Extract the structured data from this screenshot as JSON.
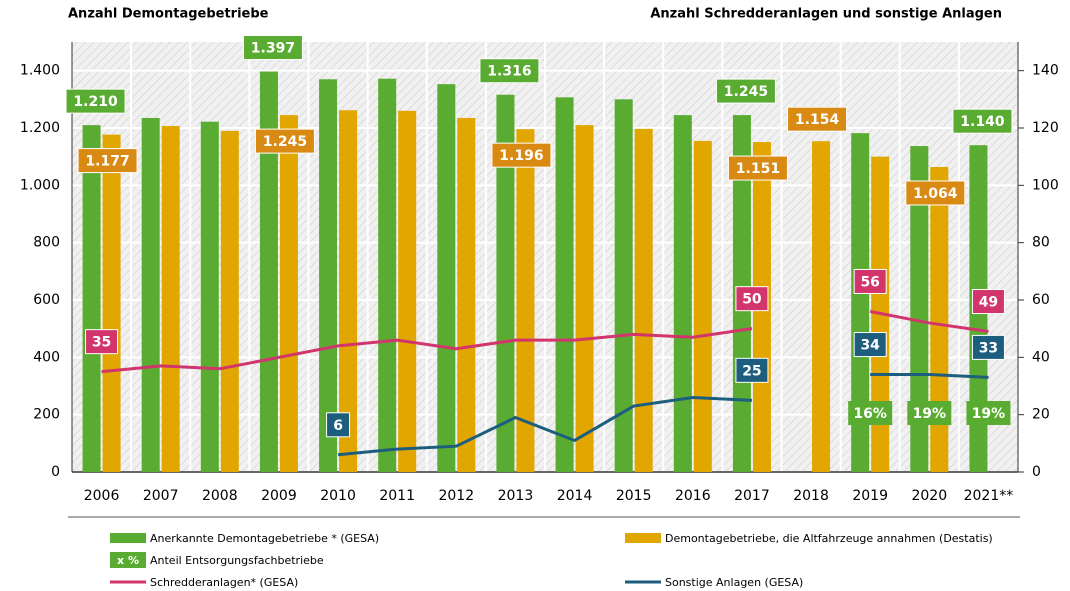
{
  "chart_data": {
    "type": "bar",
    "y_title": "Anzahl Demontagebetriebe",
    "y2_title": "Anzahl Schredderanlagen und sonstige Anlagen",
    "categories": [
      "2006",
      "2007",
      "2008",
      "2009",
      "2010",
      "2011",
      "2012",
      "2013",
      "2014",
      "2015",
      "2016",
      "2017",
      "2018",
      "2019",
      "2020",
      "2021**"
    ],
    "ylim": [
      0,
      1500
    ],
    "yticks": [
      0,
      200,
      400,
      600,
      800,
      {
        "value": 1000,
        "label": "1.000"
      },
      {
        "value": 1200,
        "label": "1.200"
      },
      {
        "value": 1400,
        "label": "1.400"
      }
    ],
    "y2lim": [
      0,
      150
    ],
    "y2ticks": [
      0,
      20,
      40,
      60,
      80,
      100,
      120,
      140
    ],
    "grid": true,
    "series": [
      {
        "name": "Anerkannte Demontagebetriebe * (GESA)",
        "type": "bar",
        "color": "#5aab31",
        "values": [
          1210,
          1235,
          1222,
          1397,
          1370,
          1372,
          1353,
          1316,
          1307,
          1300,
          1245,
          1245,
          null,
          1182,
          1137,
          1140
        ],
        "value_labels": [
          "1.210",
          null,
          null,
          "1.397",
          null,
          null,
          null,
          "1.316",
          null,
          null,
          null,
          "1.245",
          null,
          null,
          null,
          "1.140"
        ]
      },
      {
        "name": "Demontagebetriebe, die Altfahrzeuge annahmen (Destatis)",
        "type": "bar",
        "color": "#e2a600",
        "label_color": "#d98a12",
        "values": [
          1177,
          1207,
          1190,
          1245,
          1262,
          1260,
          1235,
          1196,
          1210,
          1197,
          1155,
          1151,
          1154,
          1100,
          1064,
          null
        ],
        "value_labels": [
          "1.177",
          null,
          null,
          "1.245",
          null,
          null,
          null,
          "1.196",
          null,
          null,
          null,
          "1.151",
          "1.154",
          null,
          "1.064",
          null
        ]
      },
      {
        "name": "Anteil Entsorgungsfachbetriebe",
        "type": "share",
        "color": "#5aab31",
        "legend_symbol": "x %",
        "values": [
          null,
          null,
          null,
          null,
          null,
          null,
          null,
          null,
          null,
          null,
          null,
          null,
          null,
          16,
          19,
          19
        ],
        "value_labels": [
          null,
          null,
          null,
          null,
          null,
          null,
          null,
          null,
          null,
          null,
          null,
          null,
          null,
          "16%",
          "19%",
          "19%"
        ]
      },
      {
        "name": "Schredderanlagen* (GESA)",
        "type": "line",
        "axis": "y2",
        "color": "#d2346c",
        "values": [
          35,
          37,
          36,
          40,
          44,
          46,
          43,
          46,
          46,
          48,
          47,
          50,
          null,
          56,
          52,
          49
        ],
        "value_labels": [
          "35",
          null,
          null,
          null,
          null,
          null,
          null,
          null,
          null,
          null,
          null,
          "50",
          null,
          "56",
          null,
          "49"
        ]
      },
      {
        "name": "Sonstige Anlagen (GESA)",
        "type": "line",
        "axis": "y2",
        "color": "#1d5d7e",
        "values": [
          null,
          null,
          null,
          null,
          6,
          8,
          9,
          19,
          11,
          23,
          26,
          25,
          null,
          34,
          34,
          33
        ],
        "value_labels": [
          null,
          null,
          null,
          null,
          "6",
          null,
          null,
          null,
          null,
          null,
          null,
          "25",
          null,
          "34",
          null,
          "33"
        ]
      }
    ]
  }
}
